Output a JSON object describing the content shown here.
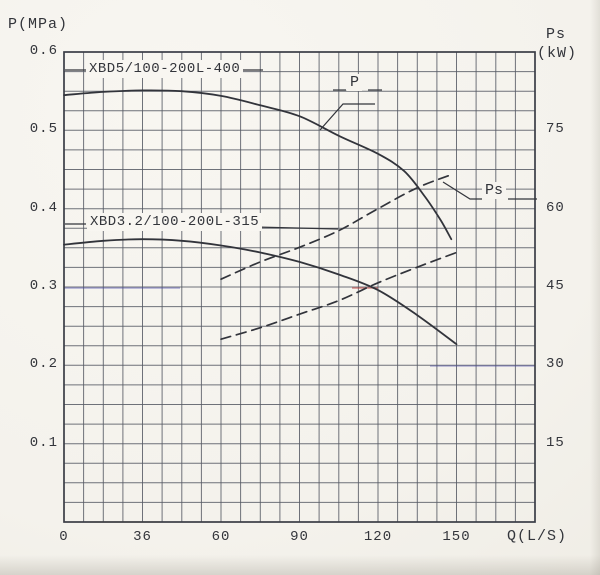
{
  "page": {
    "description_background": "#f5f3ee"
  },
  "chart_data": {
    "type": "line",
    "title": "",
    "xlabel": "Q(L/S)",
    "ylabel_left": "P(MPa)",
    "ylabel_right_line1": "Ps",
    "ylabel_right_line2": "(kW)",
    "x_ticks": [
      0,
      36,
      60,
      90,
      120,
      150
    ],
    "y_left_ticks": [
      0.6,
      0.5,
      0.4,
      0.3,
      0.2,
      0.1
    ],
    "y_left_range": [
      0,
      0.6
    ],
    "y_right_ticks": [
      75,
      60,
      45,
      30,
      15
    ],
    "y_right_range": [
      0,
      90
    ],
    "grid": {
      "columns": 24,
      "rows": 24,
      "on": true
    },
    "legend_position": "none",
    "curve_pointer_labels": {
      "p": "P",
      "ps": "Ps"
    },
    "series": [
      {
        "pump": "XBD5/100-200L-400",
        "name": "P",
        "axis": "left",
        "unit": "MPa",
        "line": "solid",
        "points": [
          [
            0,
            0.545
          ],
          [
            18,
            0.549
          ],
          [
            36,
            0.551
          ],
          [
            48,
            0.55
          ],
          [
            60,
            0.544
          ],
          [
            75,
            0.532
          ],
          [
            90,
            0.518
          ],
          [
            105,
            0.493
          ],
          [
            120,
            0.47
          ],
          [
            130,
            0.448
          ],
          [
            138,
            0.415
          ],
          [
            144,
            0.385
          ],
          [
            148,
            0.361
          ]
        ]
      },
      {
        "pump": "XBD3.2/100-200L-315",
        "name": "P",
        "axis": "left",
        "unit": "MPa",
        "line": "solid",
        "points": [
          [
            0,
            0.354
          ],
          [
            18,
            0.359
          ],
          [
            36,
            0.361
          ],
          [
            48,
            0.359
          ],
          [
            60,
            0.353
          ],
          [
            75,
            0.344
          ],
          [
            90,
            0.332
          ],
          [
            105,
            0.316
          ],
          [
            120,
            0.296
          ],
          [
            135,
            0.264
          ],
          [
            150,
            0.227
          ]
        ]
      },
      {
        "pump": "XBD5/100-200L-400",
        "name": "Ps",
        "axis": "right",
        "unit": "kW",
        "line": "dashed",
        "points": [
          [
            60,
            46.5
          ],
          [
            75,
            49.8
          ],
          [
            90,
            52.6
          ],
          [
            105,
            55.8
          ],
          [
            120,
            60.0
          ],
          [
            135,
            64.0
          ],
          [
            148,
            66.5
          ]
        ]
      },
      {
        "pump": "XBD3.2/100-200L-315",
        "name": "Ps",
        "axis": "right",
        "unit": "kW",
        "line": "dashed",
        "points": [
          [
            60,
            35.0
          ],
          [
            75,
            37.2
          ],
          [
            90,
            39.8
          ],
          [
            105,
            42.4
          ],
          [
            120,
            45.8
          ],
          [
            135,
            48.8
          ],
          [
            150,
            51.6
          ]
        ]
      }
    ]
  }
}
